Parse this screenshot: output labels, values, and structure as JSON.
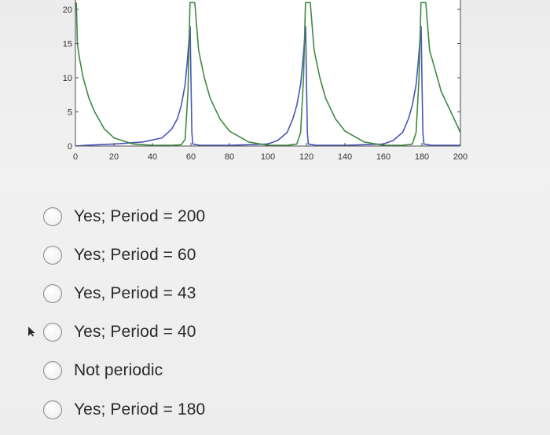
{
  "chart_data": {
    "type": "line",
    "x_ticks": [
      0,
      20,
      40,
      60,
      80,
      100,
      120,
      140,
      160,
      180,
      200
    ],
    "y_ticks_visible": [
      0,
      5,
      10,
      15,
      20
    ],
    "xlim": [
      0,
      200
    ],
    "ylim_visible": [
      0,
      21
    ],
    "grid": false,
    "series": [
      {
        "color": "#4a55b8",
        "points": [
          [
            0,
            0
          ],
          [
            5,
            0.1
          ],
          [
            20,
            0.3
          ],
          [
            35,
            0.6
          ],
          [
            45,
            1.2
          ],
          [
            50,
            2.5
          ],
          [
            53,
            4
          ],
          [
            55,
            6
          ],
          [
            57,
            9
          ],
          [
            58,
            12
          ],
          [
            59,
            15.5
          ],
          [
            59.6,
            17.5
          ],
          [
            60,
            10
          ],
          [
            60.5,
            2
          ],
          [
            61,
            0.3
          ],
          [
            65,
            0.1
          ],
          [
            80,
            0.1
          ],
          [
            100,
            0.3
          ],
          [
            105,
            0.8
          ],
          [
            110,
            2
          ],
          [
            113,
            4
          ],
          [
            115,
            6
          ],
          [
            117,
            9
          ],
          [
            118,
            12
          ],
          [
            119,
            15.5
          ],
          [
            119.6,
            17.5
          ],
          [
            120,
            10
          ],
          [
            120.5,
            2
          ],
          [
            121,
            0.3
          ],
          [
            125,
            0.1
          ],
          [
            140,
            0.1
          ],
          [
            160,
            0.3
          ],
          [
            165,
            0.8
          ],
          [
            170,
            2
          ],
          [
            173,
            4
          ],
          [
            175,
            6
          ],
          [
            177,
            9
          ],
          [
            178,
            12
          ],
          [
            179,
            15.5
          ],
          [
            179.6,
            17.5
          ],
          [
            180,
            10
          ],
          [
            180.5,
            2
          ],
          [
            181,
            0.3
          ],
          [
            185,
            0.1
          ],
          [
            200,
            0.1
          ]
        ]
      },
      {
        "color": "#3f8a3f",
        "points": [
          [
            0.5,
            21
          ],
          [
            1,
            15
          ],
          [
            2,
            13
          ],
          [
            4,
            10
          ],
          [
            7,
            7
          ],
          [
            10,
            5
          ],
          [
            15,
            2.5
          ],
          [
            20,
            1.2
          ],
          [
            30,
            0.3
          ],
          [
            40,
            0.1
          ],
          [
            50,
            0.1
          ],
          [
            55,
            0.2
          ],
          [
            57,
            1
          ],
          [
            58.5,
            8
          ],
          [
            59.5,
            21
          ],
          [
            62,
            21
          ],
          [
            64,
            14
          ],
          [
            67,
            10
          ],
          [
            70,
            7
          ],
          [
            75,
            4
          ],
          [
            80,
            2.2
          ],
          [
            90,
            0.6
          ],
          [
            100,
            0.1
          ],
          [
            110,
            0.1
          ],
          [
            115,
            0.3
          ],
          [
            117,
            2
          ],
          [
            118.5,
            10
          ],
          [
            119.5,
            21
          ],
          [
            122,
            21
          ],
          [
            124,
            14
          ],
          [
            127,
            10
          ],
          [
            130,
            7
          ],
          [
            135,
            4
          ],
          [
            140,
            2.2
          ],
          [
            150,
            0.6
          ],
          [
            160,
            0.1
          ],
          [
            170,
            0.1
          ],
          [
            175,
            0.3
          ],
          [
            177,
            2
          ],
          [
            178.5,
            10
          ],
          [
            179.5,
            21
          ],
          [
            182,
            21
          ],
          [
            184,
            14
          ],
          [
            187,
            11
          ],
          [
            190,
            8
          ],
          [
            195,
            5
          ],
          [
            200,
            2
          ]
        ]
      }
    ]
  },
  "options": [
    {
      "label": "Yes; Period = 200"
    },
    {
      "label": "Yes; Period = 60"
    },
    {
      "label": "Yes, Period = 43"
    },
    {
      "label": "Yes; Period = 40"
    },
    {
      "label": "Not periodic"
    },
    {
      "label": "Yes; Period = 180"
    }
  ]
}
